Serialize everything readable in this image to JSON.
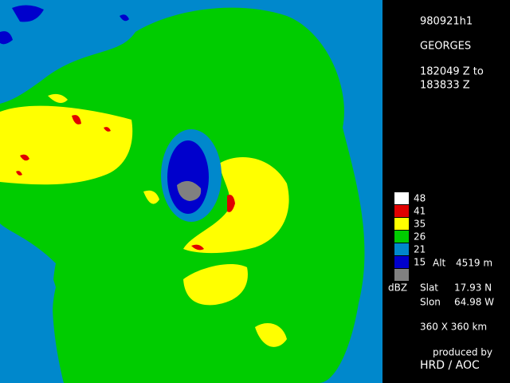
{
  "header": {
    "id": "980921h1",
    "storm": "GEORGES",
    "time_start": "182049 Z to",
    "time_end": "183833 Z"
  },
  "legend": {
    "unit": "dBZ",
    "levels": [
      {
        "label": 48,
        "color": "#ffffff"
      },
      {
        "label": 41,
        "color": "#e00000"
      },
      {
        "label": 35,
        "color": "#ffff00"
      },
      {
        "label": 26,
        "color": "#00cc00"
      },
      {
        "label": 21,
        "color": "#0088cc"
      },
      {
        "label": 15,
        "color": "#0000cc"
      },
      {
        "label": null,
        "color": "#808080"
      }
    ]
  },
  "info": {
    "alt_label": "Alt",
    "alt_value": "4519 m",
    "slat_label": "Slat",
    "slat_value": "17.93 N",
    "slon_label": "Slon",
    "slon_value": "64.98 W",
    "extent": "360 X 360 km",
    "credit_line": "produced by",
    "credit": "HRD / AOC"
  }
}
